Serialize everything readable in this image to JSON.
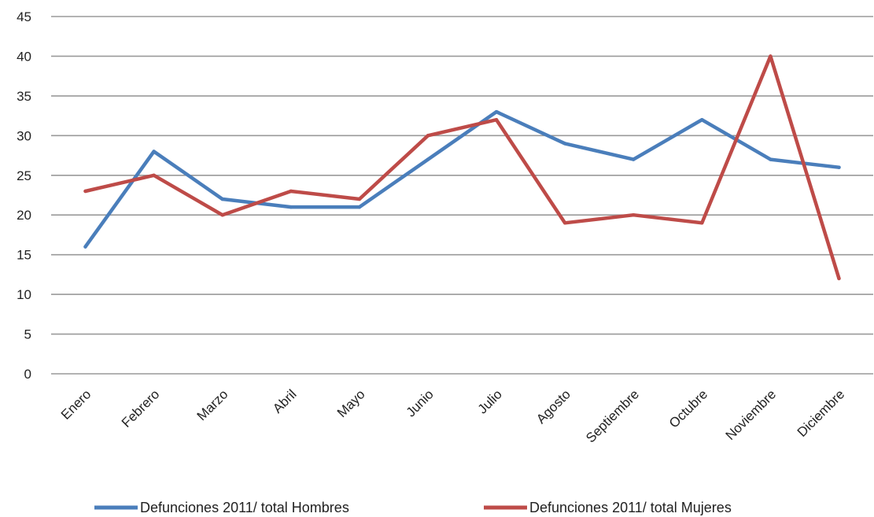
{
  "chart_data": {
    "type": "line",
    "title": "",
    "xlabel": "",
    "ylabel": "",
    "categories": [
      "Enero",
      "Febrero",
      "Marzo",
      "Abril",
      "Mayo",
      "Junio",
      "Julio",
      "Agosto",
      "Septiembre",
      "Octubre",
      "Noviembre",
      "Diciembre"
    ],
    "ylim": [
      0,
      45
    ],
    "yticks": [
      "0",
      "5",
      "10",
      "15",
      "20",
      "25",
      "30",
      "35",
      "40",
      "45"
    ],
    "grid": true,
    "legend_position": "bottom",
    "series": [
      {
        "name": "Defunciones 2011/ total Hombres",
        "color": "#4a7ebb",
        "values": [
          16,
          28,
          22,
          21,
          21,
          27,
          33,
          29,
          27,
          32,
          27,
          26
        ]
      },
      {
        "name": "Defunciones 2011/ total Mujeres",
        "color": "#be4b48",
        "values": [
          23,
          25,
          20,
          23,
          22,
          30,
          32,
          19,
          20,
          19,
          40,
          12
        ]
      }
    ]
  }
}
